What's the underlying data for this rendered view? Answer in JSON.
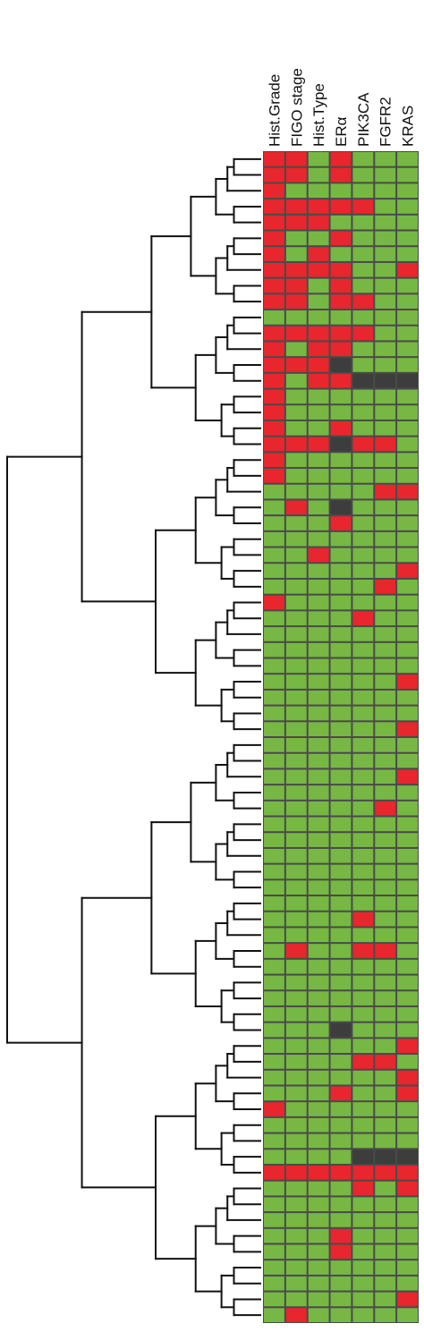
{
  "headers": [
    "Hist.Grade",
    "FIGO stage",
    "Hist.Type",
    "ERα",
    "PIK3CA",
    "FGFR2",
    "KRAS"
  ],
  "colors": {
    "positive": "#e8262d",
    "negative": "#76b843",
    "missing": "#3d3d3d",
    "grid": "#4a4a4a",
    "tree": "#111111"
  },
  "chart_data": {
    "type": "heatmap",
    "title": "",
    "columns": [
      "Hist.Grade",
      "FIGO stage",
      "Hist.Type",
      "ERα",
      "PIK3CA",
      "FGFR2",
      "KRAS"
    ],
    "encoding": {
      "1": "red",
      "0": "green",
      "-1": "dark gray (no data)"
    },
    "rows": [
      [
        1,
        1,
        0,
        1,
        0,
        0,
        0
      ],
      [
        1,
        1,
        0,
        1,
        0,
        0,
        0
      ],
      [
        1,
        0,
        0,
        0,
        0,
        0,
        0
      ],
      [
        1,
        1,
        1,
        1,
        1,
        0,
        0
      ],
      [
        1,
        1,
        1,
        0,
        0,
        0,
        0
      ],
      [
        1,
        0,
        0,
        1,
        0,
        0,
        0
      ],
      [
        1,
        0,
        1,
        0,
        0,
        0,
        0
      ],
      [
        1,
        1,
        1,
        1,
        0,
        0,
        1
      ],
      [
        1,
        1,
        0,
        1,
        0,
        0,
        0
      ],
      [
        1,
        1,
        0,
        1,
        1,
        0,
        0
      ],
      [
        0,
        0,
        0,
        0,
        0,
        0,
        0
      ],
      [
        1,
        1,
        1,
        1,
        1,
        0,
        0
      ],
      [
        1,
        0,
        1,
        1,
        0,
        0,
        0
      ],
      [
        1,
        1,
        1,
        -1,
        0,
        0,
        0
      ],
      [
        1,
        0,
        1,
        1,
        -1,
        -1,
        -1
      ],
      [
        1,
        0,
        0,
        0,
        0,
        0,
        0
      ],
      [
        1,
        0,
        0,
        0,
        0,
        0,
        0
      ],
      [
        1,
        0,
        0,
        1,
        0,
        0,
        0
      ],
      [
        1,
        1,
        1,
        -1,
        1,
        1,
        0
      ],
      [
        1,
        0,
        0,
        0,
        0,
        0,
        0
      ],
      [
        1,
        0,
        0,
        0,
        0,
        0,
        0
      ],
      [
        0,
        0,
        0,
        0,
        0,
        1,
        1
      ],
      [
        0,
        1,
        0,
        -1,
        0,
        0,
        0
      ],
      [
        0,
        0,
        0,
        1,
        0,
        0,
        0
      ],
      [
        0,
        0,
        0,
        0,
        0,
        0,
        0
      ],
      [
        0,
        0,
        1,
        0,
        0,
        0,
        0
      ],
      [
        0,
        0,
        0,
        0,
        0,
        0,
        1
      ],
      [
        0,
        0,
        0,
        0,
        0,
        1,
        0
      ],
      [
        1,
        0,
        0,
        0,
        0,
        0,
        0
      ],
      [
        0,
        0,
        0,
        0,
        1,
        0,
        0
      ],
      [
        0,
        0,
        0,
        0,
        0,
        0,
        0
      ],
      [
        0,
        0,
        0,
        0,
        0,
        0,
        0
      ],
      [
        0,
        0,
        0,
        0,
        0,
        0,
        0
      ],
      [
        0,
        0,
        0,
        0,
        0,
        0,
        1
      ],
      [
        0,
        0,
        0,
        0,
        0,
        0,
        0
      ],
      [
        0,
        0,
        0,
        0,
        0,
        0,
        0
      ],
      [
        0,
        0,
        0,
        0,
        0,
        0,
        1
      ],
      [
        0,
        0,
        0,
        0,
        0,
        0,
        0
      ],
      [
        0,
        0,
        0,
        0,
        0,
        0,
        0
      ],
      [
        0,
        0,
        0,
        0,
        0,
        0,
        1
      ],
      [
        0,
        0,
        0,
        0,
        0,
        0,
        0
      ],
      [
        0,
        0,
        0,
        0,
        0,
        1,
        0
      ],
      [
        0,
        0,
        0,
        0,
        0,
        0,
        0
      ],
      [
        0,
        0,
        0,
        0,
        0,
        0,
        0
      ],
      [
        0,
        0,
        0,
        0,
        0,
        0,
        0
      ],
      [
        0,
        0,
        0,
        0,
        0,
        0,
        0
      ],
      [
        0,
        0,
        0,
        0,
        0,
        0,
        0
      ],
      [
        0,
        0,
        0,
        0,
        0,
        0,
        0
      ],
      [
        0,
        0,
        0,
        0,
        1,
        0,
        0
      ],
      [
        0,
        0,
        0,
        0,
        0,
        0,
        0
      ],
      [
        0,
        1,
        0,
        0,
        1,
        1,
        0
      ],
      [
        0,
        0,
        0,
        0,
        0,
        0,
        0
      ],
      [
        0,
        0,
        0,
        0,
        0,
        0,
        0
      ],
      [
        0,
        0,
        0,
        0,
        0,
        0,
        0
      ],
      [
        0,
        0,
        0,
        0,
        0,
        0,
        0
      ],
      [
        0,
        0,
        0,
        -1,
        0,
        0,
        0
      ],
      [
        0,
        0,
        0,
        0,
        0,
        0,
        1
      ],
      [
        0,
        0,
        0,
        0,
        1,
        1,
        0
      ],
      [
        0,
        0,
        0,
        0,
        0,
        0,
        1
      ],
      [
        0,
        0,
        0,
        1,
        0,
        0,
        1
      ],
      [
        1,
        0,
        0,
        0,
        0,
        0,
        0
      ],
      [
        0,
        0,
        0,
        0,
        0,
        0,
        0
      ],
      [
        0,
        0,
        0,
        0,
        0,
        0,
        0
      ],
      [
        0,
        0,
        0,
        0,
        -1,
        -1,
        -1
      ],
      [
        1,
        1,
        1,
        1,
        1,
        1,
        1
      ],
      [
        0,
        0,
        0,
        0,
        1,
        0,
        1
      ],
      [
        0,
        0,
        0,
        0,
        0,
        0,
        0
      ],
      [
        0,
        0,
        0,
        0,
        0,
        0,
        0
      ],
      [
        0,
        0,
        0,
        1,
        0,
        0,
        0
      ],
      [
        0,
        0,
        0,
        1,
        0,
        0,
        0
      ],
      [
        0,
        0,
        0,
        0,
        0,
        0,
        0
      ],
      [
        0,
        0,
        0,
        0,
        0,
        0,
        0
      ],
      [
        0,
        0,
        0,
        0,
        0,
        0,
        1
      ],
      [
        0,
        1,
        0,
        0,
        0,
        0,
        0
      ]
    ]
  }
}
